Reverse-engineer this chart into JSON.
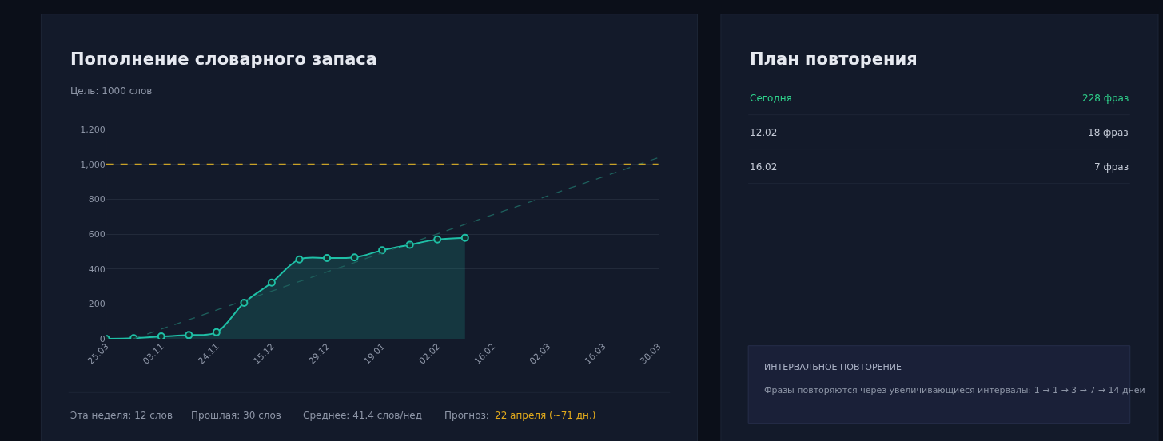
{
  "chart_data": [
    {
      "type": "area",
      "title": "Пополнение словарного запаса",
      "subtitle": "Цель: 1000 слов",
      "categories": [
        "25.03",
        null,
        "03.11",
        null,
        "24.11",
        null,
        "15.12",
        null,
        "29.12",
        null,
        "19.01",
        null,
        "02.02",
        null,
        "16.02",
        null,
        "02.03",
        null,
        "16.03",
        null,
        "30.03"
      ],
      "series": [
        {
          "type": "area",
          "color": "#1fbfa6",
          "marker": "circle",
          "values": [
            0,
            3,
            13,
            21,
            37,
            206,
            322,
            455,
            463,
            466,
            507,
            539,
            569,
            579,
            null,
            null,
            null,
            null,
            null,
            null,
            null
          ]
        },
        {
          "type": "line",
          "color": "#1e5f5c",
          "line_style": "dashed",
          "marker": "none",
          "values": [
            null,
            0,
            55,
            109,
            164,
            219,
            273,
            328,
            383,
            437,
            492,
            547,
            601,
            656,
            711,
            765,
            820,
            875,
            929,
            984,
            1039
          ]
        }
      ],
      "ylim": [
        0,
        1200
      ],
      "yticks": [
        0,
        200,
        400,
        600,
        800,
        {
          "value": 1000,
          "label": "1,000"
        },
        {
          "value": 1200,
          "label": "1,200"
        }
      ],
      "grid": "y",
      "ref_lines": [
        {
          "axis": "y",
          "value": 1000,
          "color": "#c9a227",
          "line_style": "dashed"
        }
      ],
      "annotations": [
        "Эта неделя: 12 слов",
        "Прошлая: 30 слов",
        "Среднее: 41.4 слов/нед",
        "Прогноз:",
        "22 апреля (~71 дн.)"
      ]
    },
    {
      "type": "other",
      "title": "План повторения",
      "annotations": [
        "Сегодня",
        "228 фраз",
        "12.02",
        "18 фраз",
        "16.02",
        "7 фраз",
        "ИНТЕРВАЛЬНОЕ ПОВТОРЕНИЕ",
        "Фразы повторяются через увеличивающиеся интервалы: 1 → 1 → 3 → 7 → 14 дней"
      ]
    }
  ]
}
